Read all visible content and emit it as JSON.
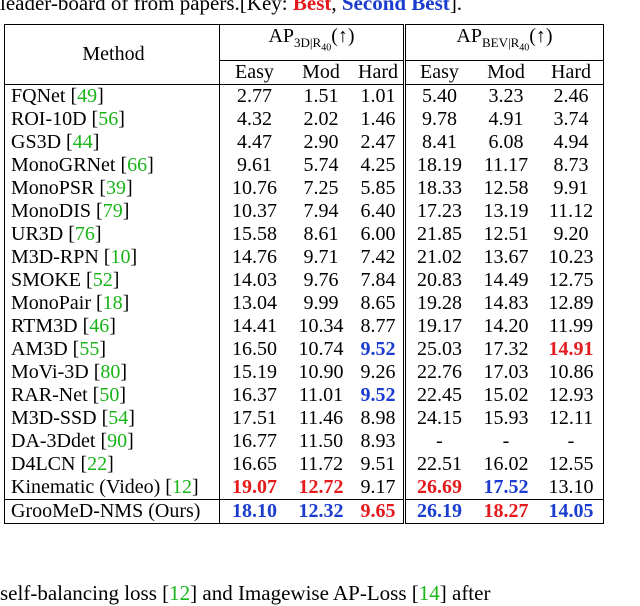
{
  "caption": {
    "prefix": "leader-board of from papers.[Key: ",
    "best": "Best",
    "sep": ", ",
    "second": "Second Best",
    "suffix": "]."
  },
  "header": {
    "method": "Method",
    "group3d": "AP",
    "group3d_sub": "3D|R",
    "group3d_subsub": "40",
    "group3d_arrow": "(↑)",
    "groupbev": "AP",
    "groupbev_sub": "BEV|R",
    "groupbev_subsub": "40",
    "groupbev_arrow": "(↑)",
    "cols": [
      "Easy",
      "Mod",
      "Hard",
      "Easy",
      "Mod",
      "Hard"
    ]
  },
  "rows": [
    {
      "name": "FQNet",
      "ref": "49",
      "vals": [
        "2.77",
        "1.51",
        "1.01",
        "5.40",
        "3.23",
        "2.46"
      ],
      "hl": [
        "",
        "",
        "",
        "",
        "",
        ""
      ]
    },
    {
      "name": "ROI-10D",
      "ref": "56",
      "vals": [
        "4.32",
        "2.02",
        "1.46",
        "9.78",
        "4.91",
        "3.74"
      ],
      "hl": [
        "",
        "",
        "",
        "",
        "",
        ""
      ]
    },
    {
      "name": "GS3D",
      "ref": "44",
      "vals": [
        "4.47",
        "2.90",
        "2.47",
        "8.41",
        "6.08",
        "4.94"
      ],
      "hl": [
        "",
        "",
        "",
        "",
        "",
        ""
      ]
    },
    {
      "name": "MonoGRNet",
      "ref": "66",
      "vals": [
        "9.61",
        "5.74",
        "4.25",
        "18.19",
        "11.17",
        "8.73"
      ],
      "hl": [
        "",
        "",
        "",
        "",
        "",
        ""
      ]
    },
    {
      "name": "MonoPSR",
      "ref": "39",
      "vals": [
        "10.76",
        "7.25",
        "5.85",
        "18.33",
        "12.58",
        "9.91"
      ],
      "hl": [
        "",
        "",
        "",
        "",
        "",
        ""
      ]
    },
    {
      "name": "MonoDIS",
      "ref": "79",
      "vals": [
        "10.37",
        "7.94",
        "6.40",
        "17.23",
        "13.19",
        "11.12"
      ],
      "hl": [
        "",
        "",
        "",
        "",
        "",
        ""
      ]
    },
    {
      "name": "UR3D",
      "ref": "76",
      "vals": [
        "15.58",
        "8.61",
        "6.00",
        "21.85",
        "12.51",
        "9.20"
      ],
      "hl": [
        "",
        "",
        "",
        "",
        "",
        ""
      ]
    },
    {
      "name": "M3D-RPN",
      "ref": "10",
      "vals": [
        "14.76",
        "9.71",
        "7.42",
        "21.02",
        "13.67",
        "10.23"
      ],
      "hl": [
        "",
        "",
        "",
        "",
        "",
        ""
      ]
    },
    {
      "name": "SMOKE",
      "ref": "52",
      "vals": [
        "14.03",
        "9.76",
        "7.84",
        "20.83",
        "14.49",
        "12.75"
      ],
      "hl": [
        "",
        "",
        "",
        "",
        "",
        ""
      ]
    },
    {
      "name": "MonoPair",
      "ref": "18",
      "vals": [
        "13.04",
        "9.99",
        "8.65",
        "19.28",
        "14.83",
        "12.89"
      ],
      "hl": [
        "",
        "",
        "",
        "",
        "",
        ""
      ]
    },
    {
      "name": "RTM3D",
      "ref": "46",
      "vals": [
        "14.41",
        "10.34",
        "8.77",
        "19.17",
        "14.20",
        "11.99"
      ],
      "hl": [
        "",
        "",
        "",
        "",
        "",
        ""
      ]
    },
    {
      "name": "AM3D",
      "ref": "55",
      "vals": [
        "16.50",
        "10.74",
        "9.52",
        "25.03",
        "17.32",
        "14.91"
      ],
      "hl": [
        "",
        "",
        "second",
        "",
        "",
        "best"
      ]
    },
    {
      "name": "MoVi-3D",
      "ref": "80",
      "vals": [
        "15.19",
        "10.90",
        "9.26",
        "22.76",
        "17.03",
        "10.86"
      ],
      "hl": [
        "",
        "",
        "",
        "",
        "",
        ""
      ]
    },
    {
      "name": "RAR-Net",
      "ref": "50",
      "vals": [
        "16.37",
        "11.01",
        "9.52",
        "22.45",
        "15.02",
        "12.93"
      ],
      "hl": [
        "",
        "",
        "second",
        "",
        "",
        ""
      ]
    },
    {
      "name": "M3D-SSD",
      "ref": "54",
      "vals": [
        "17.51",
        "11.46",
        "8.98",
        "24.15",
        "15.93",
        "12.11"
      ],
      "hl": [
        "",
        "",
        "",
        "",
        "",
        ""
      ]
    },
    {
      "name": "DA-3Ddet",
      "ref": "90",
      "vals": [
        "16.77",
        "11.50",
        "8.93",
        "-",
        "-",
        "-"
      ],
      "hl": [
        "",
        "",
        "",
        "",
        "",
        ""
      ]
    },
    {
      "name": "D4LCN",
      "ref": "22",
      "vals": [
        "16.65",
        "11.72",
        "9.51",
        "22.51",
        "16.02",
        "12.55"
      ],
      "hl": [
        "",
        "",
        "",
        "",
        "",
        ""
      ]
    },
    {
      "name": "Kinematic (Video)",
      "ref": "12",
      "vals": [
        "19.07",
        "12.72",
        "9.17",
        "26.69",
        "17.52",
        "13.10"
      ],
      "hl": [
        "best",
        "best",
        "",
        "best",
        "second",
        ""
      ]
    },
    {
      "name": "GrooMeD-NMS (Ours)",
      "ref": "",
      "vals": [
        "18.10",
        "12.32",
        "9.65",
        "26.19",
        "18.27",
        "14.05"
      ],
      "hl": [
        "second",
        "second",
        "best",
        "second",
        "best",
        "second"
      ]
    }
  ],
  "bottom": {
    "prefix": "self-balancing loss [",
    "ref1": "12",
    "mid": "] and Imagewise AP-Loss [",
    "ref2": "14",
    "suffix": "] after"
  }
}
